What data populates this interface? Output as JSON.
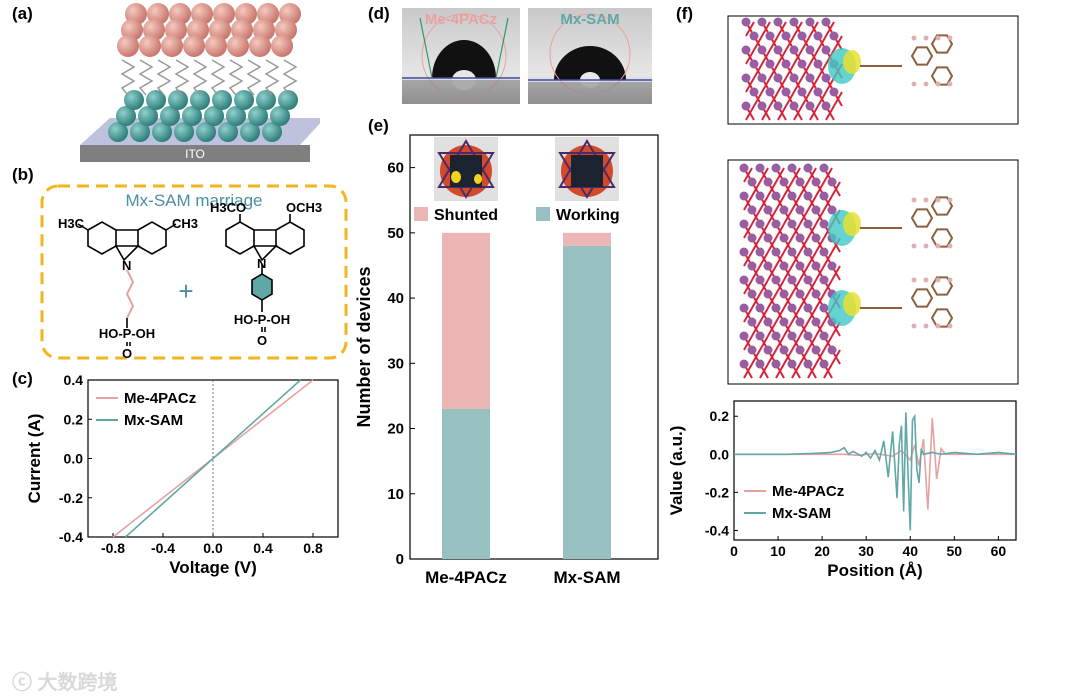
{
  "panels": {
    "a": "(a)",
    "b": "(b)",
    "c": "(c)",
    "d": "(d)",
    "e": "(e)",
    "f": "(f)"
  },
  "panel_a": {
    "substrate_label": "ITO"
  },
  "panel_b": {
    "title": "Mx-SAM marriage",
    "plus": "+",
    "mol1": {
      "sub_left": "H3C",
      "sub_right": "CH3",
      "n_atom": "N",
      "acid": "HO-P-OH",
      "oxo": "O"
    },
    "mol2": {
      "sub_left": "H3CO",
      "sub_right": "OCH3",
      "n_atom": "N",
      "acid": "HO-P-OH",
      "oxo": "O"
    }
  },
  "panel_d": {
    "left_label": "Me-4PACz",
    "right_label": "Mx-SAM"
  },
  "colors": {
    "pink": "#e8a1a1",
    "teal": "#5fa8a6",
    "bar_pink": "#ecb6b6",
    "bar_teal": "#97c1c1",
    "gold": "#f2b51e",
    "title_teal": "#4a8fa0"
  },
  "chart_data": [
    {
      "id": "c",
      "type": "line",
      "xlabel": "Voltage (V)",
      "ylabel": "Current (A)",
      "xlim": [
        -1.0,
        1.0
      ],
      "ylim": [
        -0.4,
        0.4
      ],
      "xticks": [
        "-0.8",
        "-0.4",
        "0.0",
        "0.4",
        "0.8"
      ],
      "yticks": [
        "0.4",
        "0.2",
        "0.0",
        "-0.2",
        "-0.4"
      ],
      "series": [
        {
          "name": "Me-4PACz",
          "color": "#e8a1a1",
          "points": [
            [
              -0.8,
              -0.4
            ],
            [
              0.8,
              0.4
            ]
          ]
        },
        {
          "name": "Mx-SAM",
          "color": "#5fa8a6",
          "points": [
            [
              -0.7,
              -0.4
            ],
            [
              0.7,
              0.4
            ]
          ]
        }
      ]
    },
    {
      "id": "e",
      "type": "bar",
      "stacked": true,
      "ylabel": "Number of devices",
      "ylim": [
        0,
        65
      ],
      "yticks": [
        "0",
        "10",
        "20",
        "30",
        "40",
        "50",
        "60"
      ],
      "categories": [
        "Me-4PACz",
        "Mx-SAM"
      ],
      "series": [
        {
          "name": "Working",
          "color": "#97c1c1",
          "values": [
            23,
            48
          ]
        },
        {
          "name": "Shunted",
          "color": "#ecb6b6",
          "values": [
            27,
            2
          ]
        }
      ]
    },
    {
      "id": "f",
      "type": "line",
      "xlabel": "Position (Å)",
      "ylabel": "Value (a.u.)",
      "xlim": [
        0,
        64
      ],
      "ylim": [
        -0.45,
        0.28
      ],
      "xticks": [
        "0",
        "10",
        "20",
        "30",
        "40",
        "50",
        "60"
      ],
      "yticks": [
        "0.2",
        "0.0",
        "-0.2",
        "-0.4"
      ],
      "series": [
        {
          "name": "Me-4PACz",
          "color": "#e8a1a1",
          "points": [
            [
              0,
              0
            ],
            [
              25,
              0
            ],
            [
              28,
              -0.005
            ],
            [
              32,
              0.004
            ],
            [
              36,
              -0.01
            ],
            [
              38,
              0.02
            ],
            [
              40,
              -0.03
            ],
            [
              41,
              0.05
            ],
            [
              42,
              -0.06
            ],
            [
              43,
              0.08
            ],
            [
              44,
              -0.29
            ],
            [
              45,
              0.19
            ],
            [
              46,
              -0.13
            ],
            [
              47,
              0.03
            ],
            [
              48,
              0
            ],
            [
              64,
              0
            ]
          ]
        },
        {
          "name": "Mx-SAM",
          "color": "#5fa8a6",
          "points": [
            [
              0,
              0
            ],
            [
              12,
              0
            ],
            [
              18,
              0.005
            ],
            [
              22,
              0.01
            ],
            [
              24,
              0.02
            ],
            [
              25,
              0.035
            ],
            [
              26,
              0
            ],
            [
              27,
              0.015
            ],
            [
              29,
              -0.01
            ],
            [
              30,
              0.01
            ],
            [
              31,
              -0.02
            ],
            [
              32,
              0.02
            ],
            [
              33,
              -0.03
            ],
            [
              34,
              0.07
            ],
            [
              35,
              -0.12
            ],
            [
              36,
              0.12
            ],
            [
              37,
              -0.23
            ],
            [
              37.5,
              0.05
            ],
            [
              38,
              0.15
            ],
            [
              38.5,
              -0.3
            ],
            [
              39,
              0.22
            ],
            [
              39.5,
              -0.1
            ],
            [
              40,
              -0.4
            ],
            [
              40.5,
              0.18
            ],
            [
              41,
              0.2
            ],
            [
              41.5,
              -0.08
            ],
            [
              42,
              -0.15
            ],
            [
              42.5,
              0.03
            ],
            [
              43,
              0
            ],
            [
              45,
              0.01
            ],
            [
              47,
              0
            ],
            [
              50,
              0.01
            ],
            [
              55,
              0
            ],
            [
              60,
              0.01
            ],
            [
              64,
              0
            ]
          ]
        }
      ]
    }
  ]
}
